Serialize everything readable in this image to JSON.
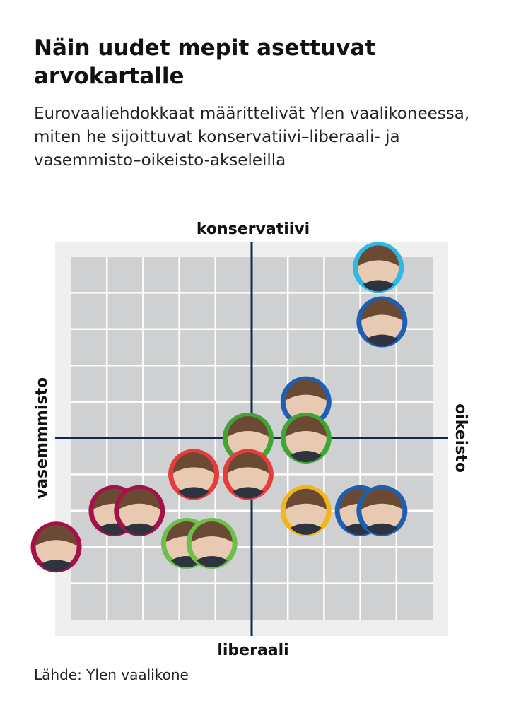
{
  "title": "Näin uudet mepit asettuvat arvokartalle",
  "subtitle": "Eurovaaliehdokkaat määrittelivät Ylen vaalikoneessa, miten he sijoittuvat konservatiivi–liberaali- ja vasemmisto–oikeisto-akseleilla",
  "source": "Lähde: Ylen vaalikone",
  "chart_data": {
    "type": "scatter",
    "axes": {
      "top": "konservatiivi",
      "bottom": "liberaali",
      "left": "vasemmmisto",
      "right": "oikeisto"
    },
    "xlim": [
      -5,
      5
    ],
    "ylim": [
      -5,
      5
    ],
    "grid": true,
    "points": [
      {
        "x": 3.5,
        "y": 4.7,
        "color": "#2eb8e6"
      },
      {
        "x": 3.6,
        "y": 3.2,
        "color": "#1f5fb3"
      },
      {
        "x": 1.5,
        "y": 1.0,
        "color": "#1f5fb3"
      },
      {
        "x": -0.1,
        "y": 0.0,
        "color": "#3fa535"
      },
      {
        "x": 1.5,
        "y": 0.0,
        "color": "#3fa535"
      },
      {
        "x": -1.6,
        "y": -1.0,
        "color": "#e53d3d"
      },
      {
        "x": -0.1,
        "y": -1.0,
        "color": "#e53d3d"
      },
      {
        "x": -3.8,
        "y": -2.0,
        "color": "#a3134a"
      },
      {
        "x": -3.1,
        "y": -2.0,
        "color": "#a3134a"
      },
      {
        "x": 1.5,
        "y": -2.0,
        "color": "#f2b51a"
      },
      {
        "x": 3.0,
        "y": -2.0,
        "color": "#1f5fb3"
      },
      {
        "x": 3.6,
        "y": -2.0,
        "color": "#1f5fb3"
      },
      {
        "x": -5.4,
        "y": -3.0,
        "color": "#a3134a"
      },
      {
        "x": -1.8,
        "y": -2.9,
        "color": "#6cc04a"
      },
      {
        "x": -1.1,
        "y": -2.9,
        "color": "#6cc04a"
      }
    ]
  }
}
